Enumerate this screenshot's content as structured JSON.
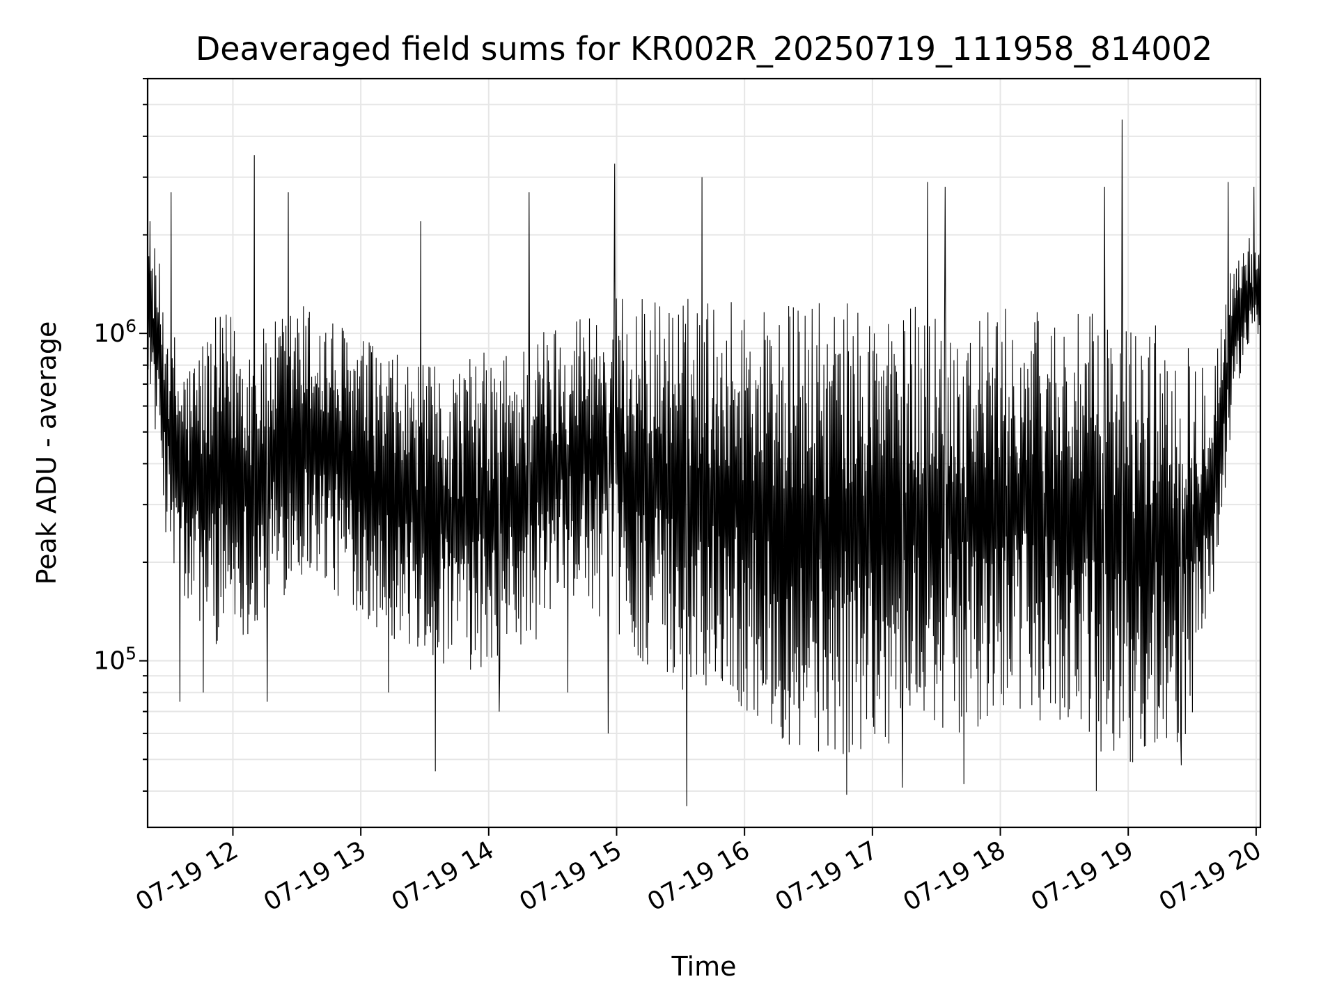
{
  "chart_data": {
    "type": "line",
    "title": "Deaveraged field sums for KR002R_20250719_111958_814002",
    "xlabel": "Time",
    "ylabel": "Peak ADU - average",
    "x_range": [
      "07-19 11:20",
      "07-19 20:02"
    ],
    "xticks": [
      {
        "label": "07-19 12",
        "hour": 12
      },
      {
        "label": "07-19 13",
        "hour": 13
      },
      {
        "label": "07-19 14",
        "hour": 14
      },
      {
        "label": "07-19 15",
        "hour": 15
      },
      {
        "label": "07-19 16",
        "hour": 16
      },
      {
        "label": "07-19 17",
        "hour": 17
      },
      {
        "label": "07-19 18",
        "hour": 18
      },
      {
        "label": "07-19 19",
        "hour": 19
      },
      {
        "label": "07-19 20",
        "hour": 20
      }
    ],
    "yscale": "log",
    "ylim": [
      31000,
      6000000
    ],
    "yticks": [
      {
        "base": "10",
        "exp": "5",
        "value": 100000
      },
      {
        "base": "10",
        "exp": "6",
        "value": 1000000
      }
    ],
    "grid": true,
    "line_color": "#000000",
    "series": [
      {
        "x": [
          "07-19 11:20",
          "07-19 11:25",
          "07-19 11:30",
          "07-19 11:35",
          "07-19 11:40",
          "07-19 11:45",
          "07-19 11:50",
          "07-19 12:00",
          "07-19 12:10",
          "07-19 12:20",
          "07-19 12:30",
          "07-19 12:40",
          "07-19 12:50",
          "07-19 13:00",
          "07-19 13:10",
          "07-19 13:20",
          "07-19 13:30",
          "07-19 13:40",
          "07-19 13:50",
          "07-19 14:00",
          "07-19 14:10",
          "07-19 14:20",
          "07-19 14:30",
          "07-19 14:40",
          "07-19 14:50",
          "07-19 15:00",
          "07-19 15:10",
          "07-19 15:20",
          "07-19 15:30",
          "07-19 15:40",
          "07-19 15:50",
          "07-19 16:00",
          "07-19 16:10",
          "07-19 16:20",
          "07-19 16:30",
          "07-19 16:40",
          "07-19 16:50",
          "07-19 17:00",
          "07-19 17:10",
          "07-19 17:20",
          "07-19 17:30",
          "07-19 17:40",
          "07-19 17:50",
          "07-19 18:00",
          "07-19 18:10",
          "07-19 18:20",
          "07-19 18:30",
          "07-19 18:40",
          "07-19 18:50",
          "07-19 19:00",
          "07-19 19:10",
          "07-19 19:20",
          "07-19 19:30",
          "07-19 19:40",
          "07-19 19:45",
          "07-19 19:50",
          "07-19 19:55",
          "07-19 20:00"
        ],
        "low": [
          800000,
          400000,
          200000,
          150000,
          130000,
          120000,
          110000,
          120000,
          120000,
          150000,
          170000,
          180000,
          150000,
          140000,
          120000,
          110000,
          100000,
          95000,
          90000,
          85000,
          100000,
          110000,
          130000,
          150000,
          140000,
          120000,
          100000,
          90000,
          80000,
          85000,
          80000,
          70000,
          60000,
          55000,
          50000,
          50000,
          52000,
          55000,
          55000,
          60000,
          62000,
          60000,
          58000,
          65000,
          70000,
          65000,
          60000,
          55000,
          50000,
          48000,
          50000,
          55000,
          60000,
          150000,
          300000,
          600000,
          800000,
          900000
        ],
        "high": [
          2200000,
          1700000,
          1200000,
          900000,
          850000,
          1000000,
          1100000,
          1200000,
          1000000,
          1100000,
          1300000,
          1200000,
          1100000,
          1000000,
          900000,
          850000,
          800000,
          800000,
          850000,
          900000,
          900000,
          1000000,
          1100000,
          1200000,
          1250000,
          1300000,
          1300000,
          1300000,
          1300000,
          1300000,
          1300000,
          1300000,
          1250000,
          1250000,
          1250000,
          1250000,
          1250000,
          1250000,
          1250000,
          1250000,
          1250000,
          1250000,
          1200000,
          1200000,
          1200000,
          1200000,
          1200000,
          1150000,
          1150000,
          1100000,
          1100000,
          1100000,
          1000000,
          900000,
          1300000,
          1800000,
          2200000,
          1800000
        ],
        "spikes": [
          {
            "t": "07-19 11:21",
            "y": 2200000
          },
          {
            "t": "07-19 11:31",
            "y": 2700000
          },
          {
            "t": "07-19 11:35",
            "y": 75000
          },
          {
            "t": "07-19 11:46",
            "y": 80000
          },
          {
            "t": "07-19 12:10",
            "y": 3500000
          },
          {
            "t": "07-19 12:16",
            "y": 75000
          },
          {
            "t": "07-19 12:26",
            "y": 2700000
          },
          {
            "t": "07-19 13:13",
            "y": 80000
          },
          {
            "t": "07-19 13:28",
            "y": 2200000
          },
          {
            "t": "07-19 13:35",
            "y": 46000
          },
          {
            "t": "07-19 14:05",
            "y": 70000
          },
          {
            "t": "07-19 14:19",
            "y": 2700000
          },
          {
            "t": "07-19 14:37",
            "y": 80000
          },
          {
            "t": "07-19 14:56",
            "y": 60000
          },
          {
            "t": "07-19 14:59",
            "y": 3300000
          },
          {
            "t": "07-19 15:40",
            "y": 3000000
          },
          {
            "t": "07-19 15:33",
            "y": 36000
          },
          {
            "t": "07-19 16:48",
            "y": 39000
          },
          {
            "t": "07-19 17:14",
            "y": 41000
          },
          {
            "t": "07-19 17:26",
            "y": 2900000
          },
          {
            "t": "07-19 17:34",
            "y": 2800000
          },
          {
            "t": "07-19 17:43",
            "y": 42000
          },
          {
            "t": "07-19 18:45",
            "y": 40000
          },
          {
            "t": "07-19 18:49",
            "y": 2800000
          },
          {
            "t": "07-19 18:57",
            "y": 4500000
          },
          {
            "t": "07-19 19:02",
            "y": 49000
          },
          {
            "t": "07-19 19:25",
            "y": 48000
          },
          {
            "t": "07-19 19:47",
            "y": 2900000
          },
          {
            "t": "07-19 19:59",
            "y": 2800000
          }
        ]
      }
    ]
  }
}
